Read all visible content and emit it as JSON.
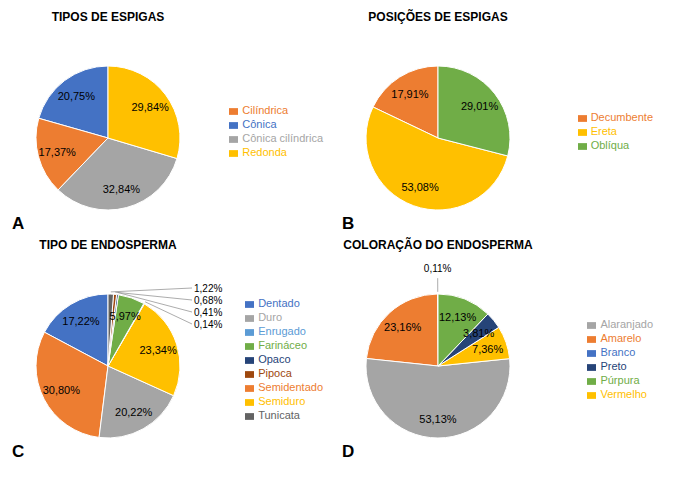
{
  "chart_data": [
    {
      "type": "pie",
      "title": "TIPOS DE ESPIGAS",
      "categories": [
        "Cônica",
        "Cilíndrica",
        "Cônica cilíndrica",
        "Redonda"
      ],
      "values": [
        20.75,
        17.37,
        32.84,
        29.84
      ],
      "value_labels": [
        "20,75%",
        "17,37%",
        "32,84%",
        "29,84%"
      ],
      "colors": [
        "#4472C4",
        "#ED7D31",
        "#A5A5A5",
        "#FFC000"
      ],
      "data_labels": true,
      "legend": "right",
      "annotations": [
        "A"
      ]
    },
    {
      "type": "pie",
      "title": "POSIÇÕES DE ESPIGAS",
      "categories": [
        "Decumbente",
        "Ereta",
        "Oblíqua"
      ],
      "values": [
        17.91,
        53.08,
        29.01
      ],
      "value_labels": [
        "17,91%",
        "53,08%",
        "29,01%"
      ],
      "colors": [
        "#ED7D31",
        "#FFC000",
        "#70AD47"
      ],
      "data_labels": true,
      "legend": "right",
      "annotations": [
        "B"
      ]
    },
    {
      "type": "pie",
      "title": "TIPO DE ENDOSPERMA",
      "categories": [
        "Dentado",
        "Semidentado",
        "Duro",
        "Semiduro",
        "Enrugado",
        "Farináceo",
        "Opaco",
        "Pipoca",
        "Tunicata"
      ],
      "values": [
        17.22,
        30.8,
        20.22,
        23.34,
        0.14,
        5.97,
        0.41,
        0.68,
        1.22
      ],
      "value_labels": [
        "17,22%",
        "30,80%",
        "20,22%",
        "23,34%",
        "0,14%",
        "5,97%",
        "0,41%",
        "0,68%",
        "1,22%"
      ],
      "colors": [
        "#4472C4",
        "#ED7D31",
        "#A5A5A5",
        "#FFC000",
        "#5B9BD5",
        "#70AD47",
        "#264478",
        "#9E480E",
        "#636363"
      ],
      "data_labels": true,
      "legend": "right",
      "annotations": [
        "C"
      ]
    },
    {
      "type": "pie",
      "title": "COLORAÇÃO DO ENDOSPERMA",
      "categories": [
        "Branco",
        "Amarelo",
        "Alaranjado",
        "Vermelho",
        "Preto",
        "Púrpura"
      ],
      "values": [
        0.11,
        23.16,
        53.13,
        7.36,
        3.81,
        12.13
      ],
      "value_labels": [
        "0,11%",
        "23,16%",
        "53,13%",
        "7,36%",
        "3,81%",
        "12,13%"
      ],
      "colors": [
        "#4472C4",
        "#ED7D31",
        "#A5A5A5",
        "#FFC000",
        "#264478",
        "#70AD47"
      ],
      "data_labels": true,
      "legend": "right",
      "annotations": [
        "D"
      ]
    }
  ]
}
